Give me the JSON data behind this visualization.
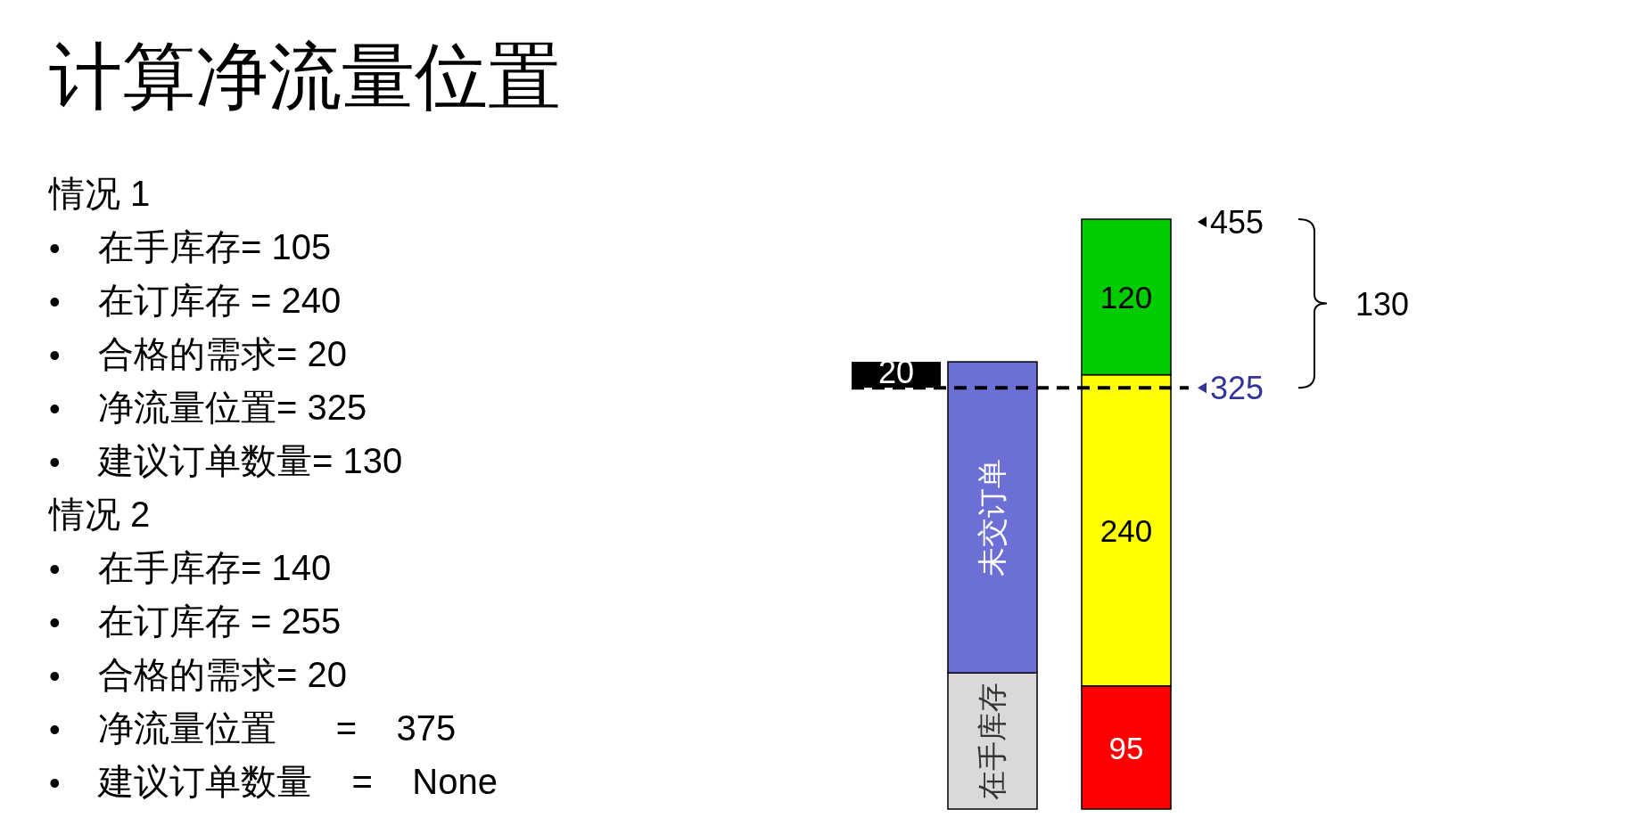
{
  "chart_data": {
    "type": "bar",
    "stacked": true,
    "title": "计算净流量位置",
    "categories": [
      null,
      null
    ],
    "series": [
      {
        "name": "在手库存",
        "color": "#d9d9d9",
        "values": [
          105,
          null
        ]
      },
      {
        "name": "未交订单",
        "color": "#6b6fd6",
        "values": [
          240,
          null
        ]
      },
      {
        "color": "#ff0000",
        "values": [
          null,
          95
        ],
        "value_labels": [
          null,
          "95"
        ]
      },
      {
        "color": "#ffff00",
        "values": [
          null,
          240
        ],
        "value_labels": [
          null,
          "240"
        ]
      },
      {
        "color": "#00cc00",
        "values": [
          null,
          120
        ],
        "value_labels": [
          null,
          "120"
        ]
      }
    ],
    "ref_lines": [
      {
        "axis": "y",
        "value": 325,
        "label": "325",
        "color": "#000000",
        "line_style": "dashed"
      }
    ],
    "annotations": [
      "20",
      "455",
      "130",
      "情况 1",
      "•\t在手库存= 105",
      "•\t在订库存 = 240",
      "•\t合格的需求= 20",
      "•\t净流量位置= 325",
      "•\t建议订单数量= 130",
      "情况 2",
      "•\t在手库存= 140",
      "•\t在订库存 = 255",
      "•\t合格的需求= 20",
      "•\t净流量位置      =    375",
      "•\t建议订单数量    =    None"
    ]
  }
}
